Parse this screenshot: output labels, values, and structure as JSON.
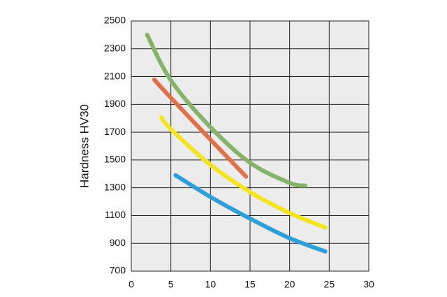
{
  "chart_data": {
    "type": "line",
    "y_label": "Hardness HV30",
    "xlim": [
      0,
      30
    ],
    "xticks": [
      0,
      5,
      10,
      15,
      20,
      25,
      30
    ],
    "ylim": [
      700,
      2500
    ],
    "yticks": [
      700,
      900,
      1100,
      1300,
      1500,
      1700,
      1900,
      2100,
      2300,
      2500
    ],
    "grid": true,
    "series": [
      {
        "color": "#86b36a",
        "x": [
          2,
          5,
          10,
          15,
          20,
          22
        ],
        "values": [
          2400,
          2073,
          1736,
          1480,
          1335,
          1315
        ]
      },
      {
        "color": "#e0704a",
        "x": [
          2.9,
          5,
          10,
          14.5
        ],
        "values": [
          2078,
          1947,
          1646,
          1380
        ]
      },
      {
        "color": "#f2e41e",
        "x": [
          3.8,
          5,
          10,
          15,
          20,
          24.5
        ],
        "values": [
          1806,
          1721,
          1465,
          1269,
          1118,
          1013
        ]
      },
      {
        "color": "#2e9fd8",
        "x": [
          5.6,
          10,
          15,
          20,
          24.5
        ],
        "values": [
          1390,
          1234,
          1078,
          937,
          842
        ]
      }
    ]
  }
}
